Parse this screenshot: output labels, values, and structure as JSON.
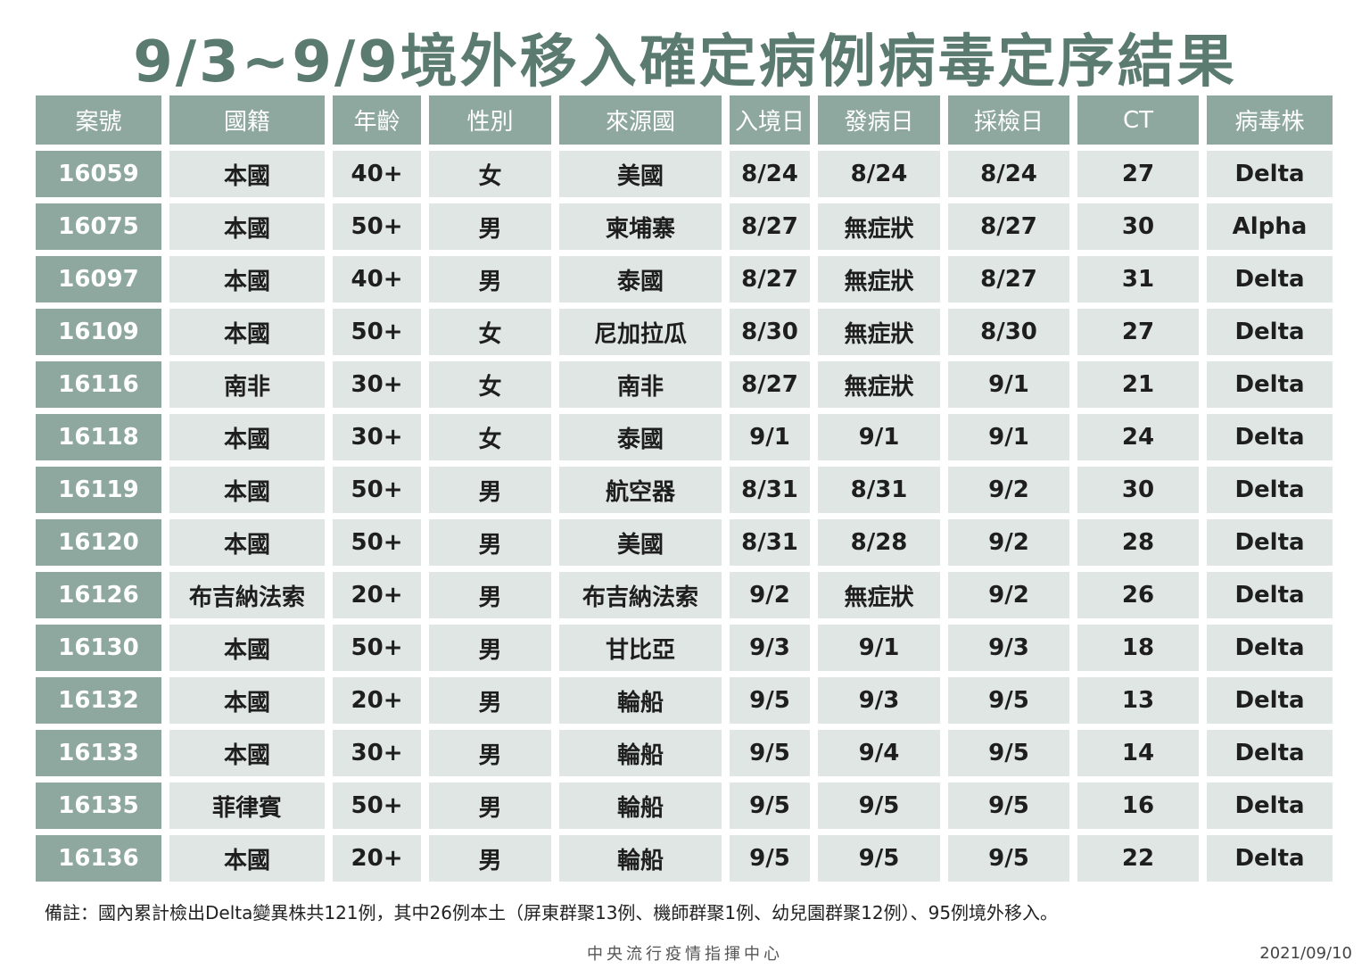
{
  "header": {
    "title": "9/3~9/9境外移入確定病例病毒定序結果"
  },
  "table": {
    "columns": [
      "案號",
      "國籍",
      "年齡",
      "性別",
      "來源國",
      "入境日",
      "發病日",
      "採檢日",
      "CT",
      "病毒株"
    ],
    "rows": [
      [
        "16059",
        "本國",
        "40+",
        "女",
        "美國",
        "8/24",
        "8/24",
        "8/24",
        "27",
        "Delta"
      ],
      [
        "16075",
        "本國",
        "50+",
        "男",
        "柬埔寨",
        "8/27",
        "無症狀",
        "8/27",
        "30",
        "Alpha"
      ],
      [
        "16097",
        "本國",
        "40+",
        "男",
        "泰國",
        "8/27",
        "無症狀",
        "8/27",
        "31",
        "Delta"
      ],
      [
        "16109",
        "本國",
        "50+",
        "女",
        "尼加拉瓜",
        "8/30",
        "無症狀",
        "8/30",
        "27",
        "Delta"
      ],
      [
        "16116",
        "南非",
        "30+",
        "女",
        "南非",
        "8/27",
        "無症狀",
        "9/1",
        "21",
        "Delta"
      ],
      [
        "16118",
        "本國",
        "30+",
        "女",
        "泰國",
        "9/1",
        "9/1",
        "9/1",
        "24",
        "Delta"
      ],
      [
        "16119",
        "本國",
        "50+",
        "男",
        "航空器",
        "8/31",
        "8/31",
        "9/2",
        "30",
        "Delta"
      ],
      [
        "16120",
        "本國",
        "50+",
        "男",
        "美國",
        "8/31",
        "8/28",
        "9/2",
        "28",
        "Delta"
      ],
      [
        "16126",
        "布吉納法索",
        "20+",
        "男",
        "布吉納法索",
        "9/2",
        "無症狀",
        "9/2",
        "26",
        "Delta"
      ],
      [
        "16130",
        "本國",
        "50+",
        "男",
        "甘比亞",
        "9/3",
        "9/1",
        "9/3",
        "18",
        "Delta"
      ],
      [
        "16132",
        "本國",
        "20+",
        "男",
        "輪船",
        "9/5",
        "9/3",
        "9/5",
        "13",
        "Delta"
      ],
      [
        "16133",
        "本國",
        "30+",
        "男",
        "輪船",
        "9/5",
        "9/4",
        "9/5",
        "14",
        "Delta"
      ],
      [
        "16135",
        "菲律賓",
        "50+",
        "男",
        "輪船",
        "9/5",
        "9/5",
        "9/5",
        "16",
        "Delta"
      ],
      [
        "16136",
        "本國",
        "20+",
        "男",
        "輪船",
        "9/5",
        "9/5",
        "9/5",
        "22",
        "Delta"
      ]
    ]
  },
  "footnote": "備註：國內累計檢出Delta變異株共121例，其中26例本土（屏東群聚13例、機師群聚1例、幼兒園群聚12例）、95例境外移入。",
  "footer": {
    "org": "中央流行疫情指揮中心",
    "date": "2021/09/10"
  }
}
